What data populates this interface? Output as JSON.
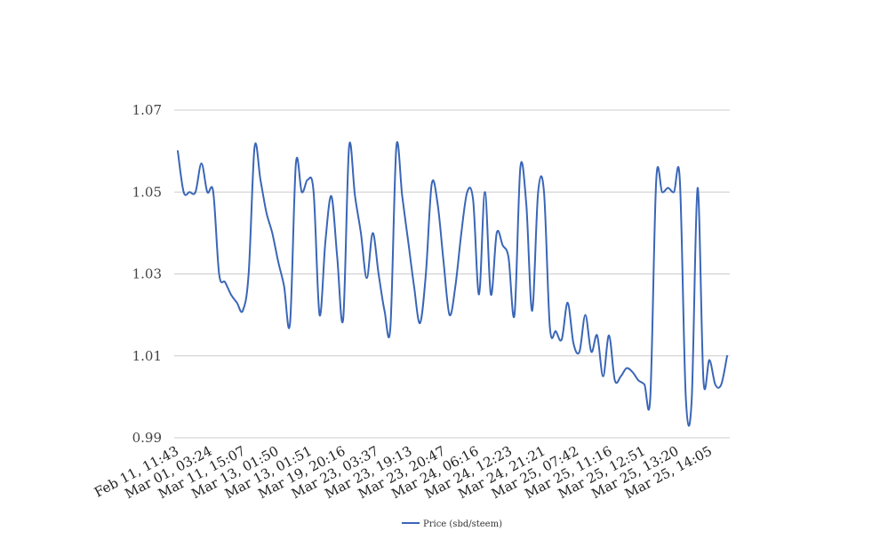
{
  "chart_data": {
    "type": "line",
    "title": "",
    "xlabel": "",
    "ylabel": "",
    "ylim": [
      0.99,
      1.07
    ],
    "y_ticks": [
      "0.99",
      "1.01",
      "1.03",
      "1.05",
      "1.07"
    ],
    "grid": "horizontal",
    "legend_position": "bottom",
    "x_tick_labels": [
      "Feb 11, 11:43",
      "Mar 01, 03:24",
      "Mar 11, 15:07",
      "Mar 13, 01:50",
      "Mar 13, 01:51",
      "Mar 19, 20:16",
      "Mar 23, 03:37",
      "Mar 23, 19:13",
      "Mar 23, 20:47",
      "Mar 24, 06:16",
      "Mar 24, 12:23",
      "Mar 24, 21:21",
      "Mar 25, 07:42",
      "Mar 25, 11:16",
      "Mar 25, 12:51",
      "Mar 25, 13:20",
      "Mar 25, 14:05"
    ],
    "series": [
      {
        "name": "Price (sbd/steem)",
        "color": "#3a66b7",
        "values": [
          1.06,
          1.05,
          1.05,
          1.05,
          1.057,
          1.05,
          1.05,
          1.03,
          1.028,
          1.025,
          1.023,
          1.021,
          1.03,
          1.061,
          1.053,
          1.045,
          1.04,
          1.033,
          1.027,
          1.018,
          1.057,
          1.05,
          1.053,
          1.05,
          1.02,
          1.038,
          1.049,
          1.034,
          1.019,
          1.061,
          1.049,
          1.04,
          1.029,
          1.04,
          1.03,
          1.021,
          1.017,
          1.061,
          1.049,
          1.038,
          1.027,
          1.018,
          1.03,
          1.052,
          1.047,
          1.033,
          1.02,
          1.027,
          1.04,
          1.05,
          1.048,
          1.025,
          1.05,
          1.025,
          1.04,
          1.037,
          1.034,
          1.02,
          1.056,
          1.047,
          1.021,
          1.05,
          1.05,
          1.017,
          1.016,
          1.014,
          1.023,
          1.013,
          1.011,
          1.02,
          1.011,
          1.015,
          1.005,
          1.015,
          1.004,
          1.005,
          1.007,
          1.006,
          1.004,
          1.003,
          1.0,
          1.053,
          1.05,
          1.051,
          1.05,
          1.053,
          1.0,
          0.999,
          1.051,
          1.004,
          1.009,
          1.003,
          1.003,
          1.01
        ]
      }
    ]
  }
}
